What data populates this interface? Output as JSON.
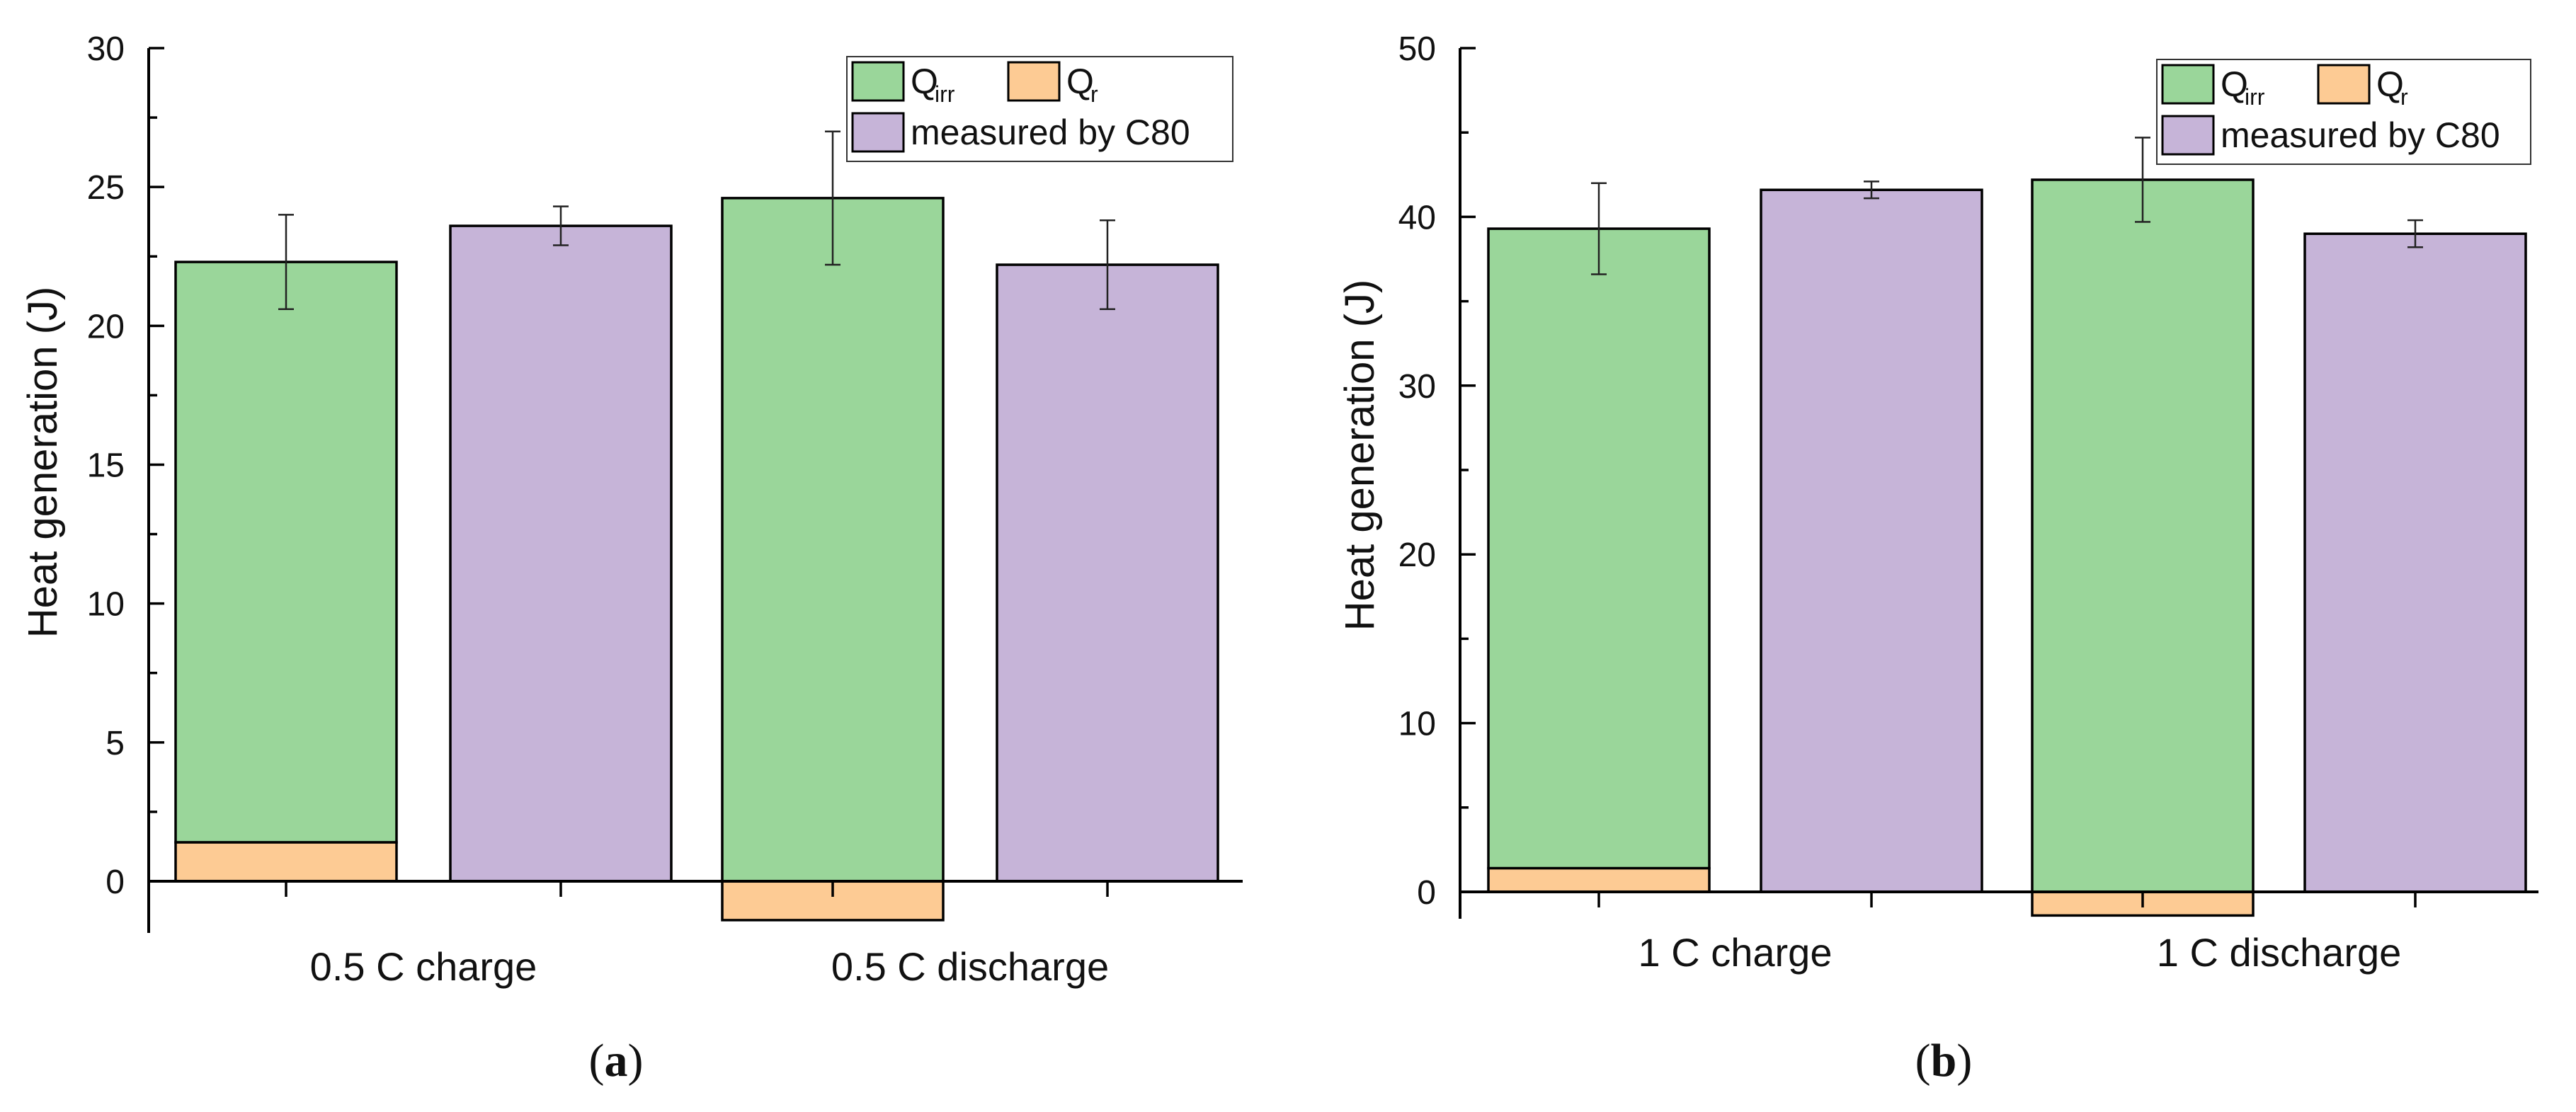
{
  "chart_data": [
    {
      "type": "bar",
      "panel_label_open": "(",
      "panel_label_letter": "a",
      "panel_label_close": ")",
      "ylabel": "Heat generation (J)",
      "ylim": [
        -1.8,
        30
      ],
      "yticks": [
        0,
        5,
        10,
        15,
        20,
        25,
        30
      ],
      "groups": [
        {
          "label": "0.5 C charge",
          "stack": {
            "Q_irr": 22.3,
            "Q_r": 1.4,
            "total": 22.3,
            "error": 1.7
          },
          "measured_by_C80": {
            "value": 23.6,
            "error": 0.7
          }
        },
        {
          "label": "0.5 C discharge",
          "stack": {
            "Q_irr": 24.6,
            "Q_r": -1.4,
            "total": 24.6,
            "error": 2.4
          },
          "measured_by_C80": {
            "value": 22.2,
            "error": 1.6
          }
        }
      ],
      "legend": {
        "position": "top-right",
        "entries": [
          {
            "main": "Q",
            "sub": "irr",
            "color": "#9ad69a"
          },
          {
            "main": "Q",
            "sub": "r",
            "color": "#fdcb94"
          },
          {
            "main": "measured by C80",
            "sub": "",
            "color": "#c6b4d8"
          }
        ]
      }
    },
    {
      "type": "bar",
      "panel_label_open": "(",
      "panel_label_letter": "b",
      "panel_label_close": ")",
      "ylabel": "Heat generation (J)",
      "ylim": [
        -2.3,
        50
      ],
      "yticks": [
        0,
        10,
        20,
        30,
        40,
        50
      ],
      "groups": [
        {
          "label": "1 C charge",
          "stack": {
            "Q_irr": 39.3,
            "Q_r": 1.4,
            "total": 39.3,
            "error": 2.7
          },
          "measured_by_C80": {
            "value": 41.6,
            "error": 0.5
          }
        },
        {
          "label": "1 C discharge",
          "stack": {
            "Q_irr": 42.2,
            "Q_r": -1.4,
            "total": 42.2,
            "error": 2.5
          },
          "measured_by_C80": {
            "value": 39.0,
            "error": 0.8
          }
        }
      ],
      "legend": {
        "position": "top-right",
        "entries": [
          {
            "main": "Q",
            "sub": "irr",
            "color": "#9ad69a"
          },
          {
            "main": "Q",
            "sub": "r",
            "color": "#fdcb94"
          },
          {
            "main": "measured by C80",
            "sub": "",
            "color": "#c6b4d8"
          }
        ]
      }
    }
  ]
}
